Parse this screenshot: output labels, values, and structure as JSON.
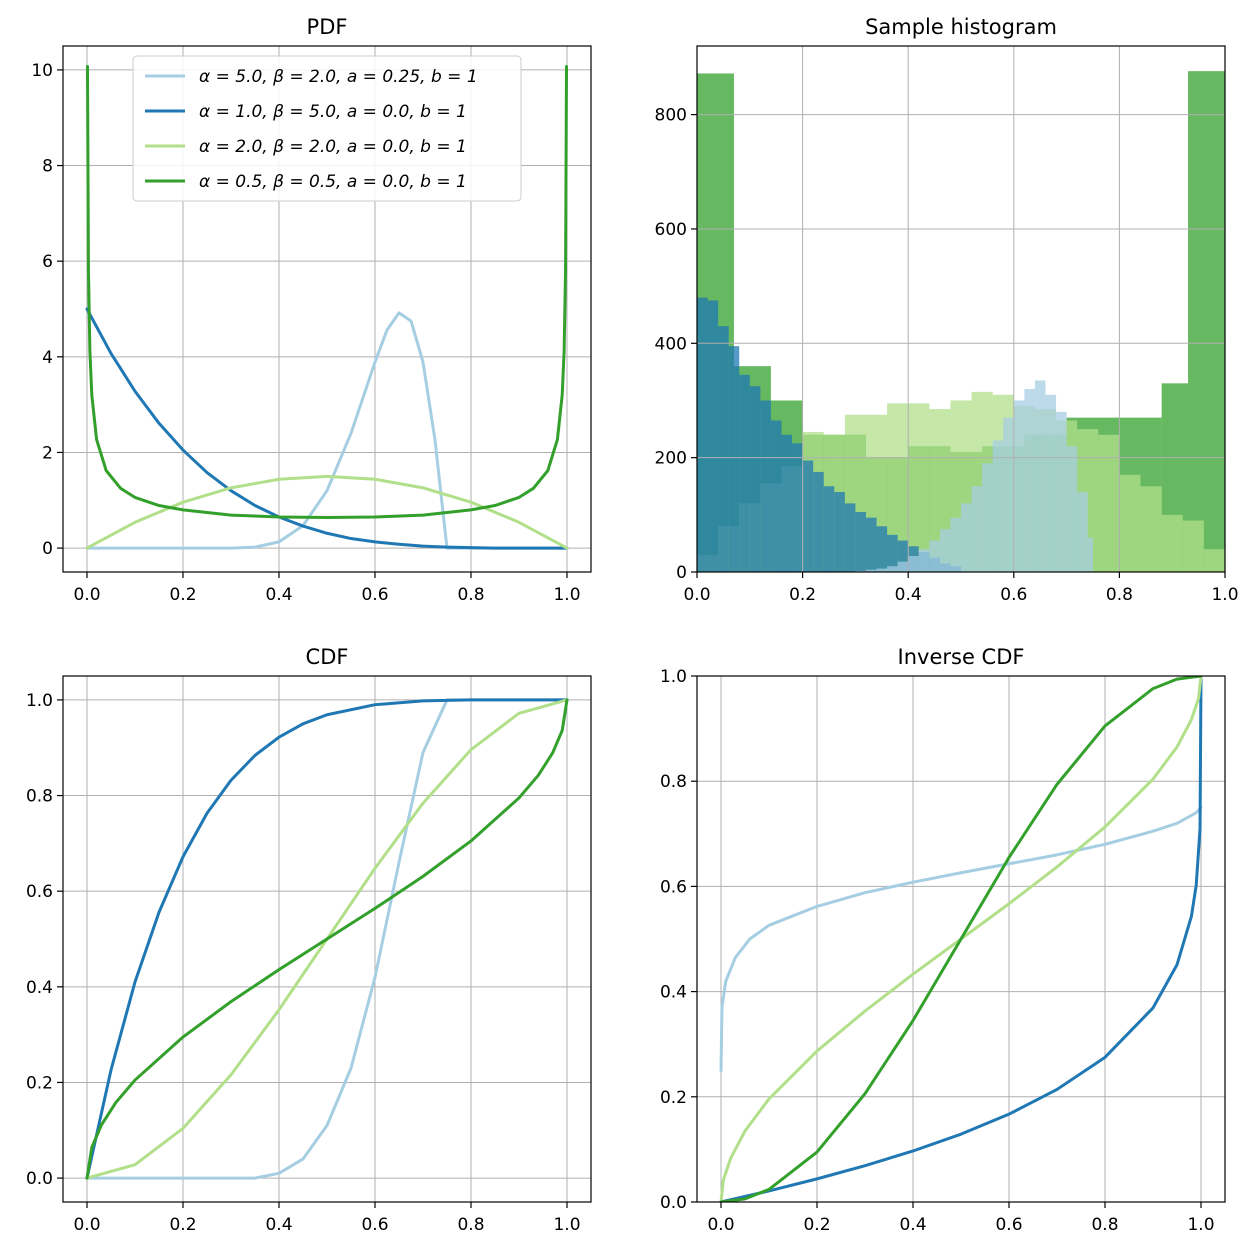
{
  "colors": {
    "light_blue": "#a6cee3",
    "dark_blue": "#1f78b4",
    "light_green": "#b2df8a",
    "dark_green": "#33a02c"
  },
  "legend": {
    "placement": "upper-center",
    "entries": [
      "α = 5.0, β = 2.0, a = 0.25, b = 1",
      "α = 1.0, β = 5.0, a = 0.0, b = 1",
      "α = 2.0, β = 2.0, a = 0.0, b = 1",
      "α = 0.5, β = 0.5, a = 0.0, b = 1"
    ]
  },
  "chart_data": [
    {
      "id": "pdf",
      "type": "line",
      "title": "PDF",
      "xlabel": "",
      "ylabel": "",
      "xlim": [
        -0.05,
        1.05
      ],
      "ylim": [
        -0.5,
        10.5
      ],
      "grid": true,
      "xticks": [
        0.0,
        0.2,
        0.4,
        0.6,
        0.8,
        1.0
      ],
      "xtick_labels": [
        "0.0",
        "0.2",
        "0.4",
        "0.6",
        "0.8",
        "1.0"
      ],
      "yticks": [
        0,
        2,
        4,
        6,
        8,
        10
      ],
      "ytick_labels": [
        "0",
        "2",
        "4",
        "6",
        "8",
        "10"
      ],
      "series": [
        {
          "name": "α = 5.0, β = 2.0, a = 0.25, b = 1",
          "color": "#a6cee3",
          "x": [
            0.0,
            0.25,
            0.3,
            0.35,
            0.4,
            0.45,
            0.5,
            0.55,
            0.6,
            0.625,
            0.65,
            0.675,
            0.7,
            0.725,
            0.75,
            1.0
          ],
          "y": [
            0,
            0,
            0.0,
            0.02,
            0.13,
            0.47,
            1.2,
            2.4,
            3.89,
            4.56,
            4.92,
            4.75,
            3.89,
            2.26,
            0,
            0
          ]
        },
        {
          "name": "α = 1.0, β = 5.0, a = 0.0, b = 1",
          "color": "#1f78b4",
          "x": [
            0.0,
            0.05,
            0.1,
            0.15,
            0.2,
            0.25,
            0.3,
            0.35,
            0.4,
            0.45,
            0.5,
            0.55,
            0.6,
            0.65,
            0.7,
            0.75,
            0.8,
            0.85,
            0.9,
            0.95,
            1.0
          ],
          "y": [
            5.0,
            4.07,
            3.28,
            2.61,
            2.05,
            1.58,
            1.2,
            0.89,
            0.65,
            0.46,
            0.31,
            0.2,
            0.13,
            0.08,
            0.04,
            0.02,
            0.01,
            0.0,
            0.0,
            0.0,
            0.0
          ]
        },
        {
          "name": "α = 2.0, β = 2.0, a = 0.0, b = 1",
          "color": "#b2df8a",
          "x": [
            0.0,
            0.1,
            0.2,
            0.3,
            0.4,
            0.5,
            0.6,
            0.7,
            0.8,
            0.9,
            1.0
          ],
          "y": [
            0.0,
            0.54,
            0.96,
            1.26,
            1.44,
            1.5,
            1.44,
            1.26,
            0.96,
            0.54,
            0.0
          ]
        },
        {
          "name": "α = 0.5, β = 0.5, a = 0.0, b = 1",
          "color": "#33a02c",
          "x": [
            0.001,
            0.003,
            0.006,
            0.01,
            0.02,
            0.04,
            0.07,
            0.1,
            0.15,
            0.2,
            0.3,
            0.4,
            0.5,
            0.6,
            0.7,
            0.8,
            0.85,
            0.9,
            0.93,
            0.96,
            0.98,
            0.99,
            0.994,
            0.997,
            0.999
          ],
          "y": [
            10.07,
            5.82,
            4.12,
            3.2,
            2.27,
            1.62,
            1.25,
            1.06,
            0.89,
            0.8,
            0.69,
            0.65,
            0.64,
            0.65,
            0.69,
            0.8,
            0.89,
            1.06,
            1.25,
            1.62,
            2.27,
            3.2,
            4.12,
            5.82,
            10.07
          ]
        }
      ]
    },
    {
      "id": "hist",
      "type": "bar",
      "title": "Sample histogram",
      "xlabel": "",
      "ylabel": "",
      "xlim": [
        0.0,
        1.0
      ],
      "ylim": [
        0,
        920
      ],
      "grid": true,
      "xticks": [
        0.0,
        0.2,
        0.4,
        0.6,
        0.8,
        1.0
      ],
      "xtick_labels": [
        "0.0",
        "0.2",
        "0.4",
        "0.6",
        "0.8",
        "1.0"
      ],
      "yticks": [
        0,
        200,
        400,
        600,
        800
      ],
      "ytick_labels": [
        "0",
        "200",
        "400",
        "600",
        "800"
      ],
      "series": [
        {
          "color": "#33a02c",
          "alpha": 0.75,
          "bins": [
            [
              0.0,
              0.07
            ],
            [
              0.07,
              0.14
            ],
            [
              0.14,
              0.2
            ],
            [
              0.2,
              0.26
            ],
            [
              0.26,
              0.32
            ],
            [
              0.32,
              0.4
            ],
            [
              0.4,
              0.48
            ],
            [
              0.48,
              0.54
            ],
            [
              0.54,
              0.62
            ],
            [
              0.62,
              0.7
            ],
            [
              0.7,
              0.8
            ],
            [
              0.8,
              0.88
            ],
            [
              0.88,
              0.93
            ],
            [
              0.93,
              1.0
            ]
          ],
          "values": [
            872,
            360,
            300,
            240,
            240,
            200,
            220,
            210,
            220,
            240,
            270,
            270,
            330,
            876
          ]
        },
        {
          "color": "#b2df8a",
          "alpha": 0.75,
          "bins": [
            [
              0.0,
              0.04
            ],
            [
              0.04,
              0.08
            ],
            [
              0.08,
              0.12
            ],
            [
              0.12,
              0.16
            ],
            [
              0.16,
              0.2
            ],
            [
              0.2,
              0.24
            ],
            [
              0.24,
              0.28
            ],
            [
              0.28,
              0.32
            ],
            [
              0.32,
              0.36
            ],
            [
              0.36,
              0.4
            ],
            [
              0.4,
              0.44
            ],
            [
              0.44,
              0.48
            ],
            [
              0.48,
              0.52
            ],
            [
              0.52,
              0.56
            ],
            [
              0.56,
              0.6
            ],
            [
              0.6,
              0.64
            ],
            [
              0.64,
              0.68
            ],
            [
              0.68,
              0.72
            ],
            [
              0.72,
              0.76
            ],
            [
              0.76,
              0.8
            ],
            [
              0.8,
              0.84
            ],
            [
              0.84,
              0.88
            ],
            [
              0.88,
              0.92
            ],
            [
              0.92,
              0.96
            ],
            [
              0.96,
              1.0
            ]
          ],
          "values": [
            30,
            80,
            120,
            155,
            185,
            245,
            240,
            275,
            275,
            295,
            295,
            285,
            300,
            315,
            310,
            290,
            285,
            265,
            250,
            240,
            170,
            150,
            100,
            90,
            40
          ]
        },
        {
          "color": "#1f78b4",
          "alpha": 0.75,
          "bins": [
            [
              0.0,
              0.02
            ],
            [
              0.02,
              0.04
            ],
            [
              0.04,
              0.06
            ],
            [
              0.06,
              0.08
            ],
            [
              0.08,
              0.1
            ],
            [
              0.1,
              0.12
            ],
            [
              0.12,
              0.14
            ],
            [
              0.14,
              0.16
            ],
            [
              0.16,
              0.18
            ],
            [
              0.18,
              0.2
            ],
            [
              0.2,
              0.22
            ],
            [
              0.22,
              0.24
            ],
            [
              0.24,
              0.26
            ],
            [
              0.26,
              0.28
            ],
            [
              0.28,
              0.3
            ],
            [
              0.3,
              0.32
            ],
            [
              0.32,
              0.34
            ],
            [
              0.34,
              0.36
            ],
            [
              0.36,
              0.38
            ],
            [
              0.38,
              0.4
            ],
            [
              0.4,
              0.42
            ],
            [
              0.42,
              0.44
            ],
            [
              0.44,
              0.46
            ],
            [
              0.46,
              0.48
            ],
            [
              0.48,
              0.5
            ]
          ],
          "values": [
            480,
            475,
            430,
            395,
            345,
            325,
            300,
            265,
            240,
            225,
            195,
            175,
            150,
            140,
            120,
            105,
            95,
            80,
            65,
            55,
            45,
            35,
            25,
            15,
            10
          ]
        },
        {
          "color": "#a6cee3",
          "alpha": 0.75,
          "bins": [
            [
              0.3,
              0.32
            ],
            [
              0.32,
              0.34
            ],
            [
              0.34,
              0.36
            ],
            [
              0.36,
              0.38
            ],
            [
              0.38,
              0.4
            ],
            [
              0.4,
              0.42
            ],
            [
              0.42,
              0.44
            ],
            [
              0.44,
              0.46
            ],
            [
              0.46,
              0.48
            ],
            [
              0.48,
              0.5
            ],
            [
              0.5,
              0.52
            ],
            [
              0.52,
              0.54
            ],
            [
              0.54,
              0.56
            ],
            [
              0.56,
              0.58
            ],
            [
              0.58,
              0.6
            ],
            [
              0.6,
              0.62
            ],
            [
              0.62,
              0.64
            ],
            [
              0.64,
              0.66
            ],
            [
              0.66,
              0.68
            ],
            [
              0.68,
              0.7
            ],
            [
              0.7,
              0.72
            ],
            [
              0.72,
              0.74
            ],
            [
              0.74,
              0.75
            ]
          ],
          "values": [
            2,
            4,
            6,
            10,
            18,
            28,
            40,
            55,
            75,
            95,
            120,
            150,
            190,
            230,
            270,
            300,
            320,
            335,
            310,
            280,
            220,
            140,
            60
          ]
        }
      ]
    },
    {
      "id": "cdf",
      "type": "line",
      "title": "CDF",
      "xlabel": "",
      "ylabel": "",
      "xlim": [
        -0.05,
        1.05
      ],
      "ylim": [
        -0.05,
        1.05
      ],
      "grid": true,
      "xticks": [
        0.0,
        0.2,
        0.4,
        0.6,
        0.8,
        1.0
      ],
      "xtick_labels": [
        "0.0",
        "0.2",
        "0.4",
        "0.6",
        "0.8",
        "1.0"
      ],
      "yticks": [
        0.0,
        0.2,
        0.4,
        0.6,
        0.8,
        1.0
      ],
      "ytick_labels": [
        "0.0",
        "0.2",
        "0.4",
        "0.6",
        "0.8",
        "1.0"
      ],
      "series": [
        {
          "name": "α = 5.0, β = 2.0, a = 0.25, b = 1",
          "color": "#a6cee3",
          "x": [
            0.0,
            0.25,
            0.3,
            0.35,
            0.4,
            0.45,
            0.5,
            0.55,
            0.6,
            0.65,
            0.7,
            0.75,
            1.0
          ],
          "y": [
            0,
            0,
            0.0,
            0.0,
            0.01,
            0.04,
            0.11,
            0.23,
            0.42,
            0.66,
            0.89,
            1.0,
            1.0
          ]
        },
        {
          "name": "α = 1.0, β = 5.0, a = 0.0, b = 1",
          "color": "#1f78b4",
          "x": [
            0.0,
            0.05,
            0.1,
            0.15,
            0.2,
            0.25,
            0.3,
            0.35,
            0.4,
            0.45,
            0.5,
            0.6,
            0.7,
            0.8,
            0.9,
            1.0
          ],
          "y": [
            0.0,
            0.226,
            0.41,
            0.556,
            0.672,
            0.763,
            0.832,
            0.884,
            0.922,
            0.95,
            0.969,
            0.99,
            0.998,
            1.0,
            1.0,
            1.0
          ]
        },
        {
          "name": "α = 2.0, β = 2.0, a = 0.0, b = 1",
          "color": "#b2df8a",
          "x": [
            0.0,
            0.1,
            0.2,
            0.3,
            0.4,
            0.5,
            0.6,
            0.7,
            0.8,
            0.9,
            1.0
          ],
          "y": [
            0.0,
            0.028,
            0.104,
            0.216,
            0.352,
            0.5,
            0.648,
            0.784,
            0.896,
            0.972,
            1.0
          ]
        },
        {
          "name": "α = 0.5, β = 0.5, a = 0.0, b = 1",
          "color": "#33a02c",
          "x": [
            0.0,
            0.01,
            0.03,
            0.06,
            0.1,
            0.2,
            0.3,
            0.4,
            0.5,
            0.6,
            0.7,
            0.8,
            0.9,
            0.94,
            0.97,
            0.99,
            1.0
          ],
          "y": [
            0.0,
            0.064,
            0.111,
            0.158,
            0.205,
            0.295,
            0.369,
            0.436,
            0.5,
            0.564,
            0.631,
            0.705,
            0.795,
            0.842,
            0.889,
            0.936,
            1.0
          ]
        }
      ]
    },
    {
      "id": "icdf",
      "type": "line",
      "title": "Inverse CDF",
      "xlabel": "",
      "ylabel": "",
      "xlim": [
        -0.05,
        1.05
      ],
      "ylim": [
        0.0,
        1.0
      ],
      "grid": true,
      "xticks": [
        0.0,
        0.2,
        0.4,
        0.6,
        0.8,
        1.0
      ],
      "xtick_labels": [
        "0.0",
        "0.2",
        "0.4",
        "0.6",
        "0.8",
        "1.0"
      ],
      "yticks": [
        0.0,
        0.2,
        0.4,
        0.6,
        0.8,
        1.0
      ],
      "ytick_labels": [
        "0.0",
        "0.2",
        "0.4",
        "0.6",
        "0.8",
        "1.0"
      ],
      "series": [
        {
          "name": "α = 5.0, β = 2.0, a = 0.25, b = 1",
          "color": "#a6cee3",
          "x": [
            0.0,
            0.002,
            0.01,
            0.03,
            0.06,
            0.1,
            0.2,
            0.3,
            0.4,
            0.5,
            0.6,
            0.7,
            0.8,
            0.9,
            0.95,
            0.99,
            1.0
          ],
          "y": [
            0.25,
            0.37,
            0.42,
            0.465,
            0.5,
            0.526,
            0.562,
            0.588,
            0.608,
            0.626,
            0.643,
            0.66,
            0.68,
            0.705,
            0.72,
            0.74,
            0.75
          ]
        },
        {
          "name": "α = 1.0, β = 5.0, a = 0.0, b = 1",
          "color": "#1f78b4",
          "x": [
            0.0,
            0.1,
            0.2,
            0.3,
            0.4,
            0.5,
            0.6,
            0.7,
            0.8,
            0.9,
            0.95,
            0.98,
            0.99,
            0.998,
            1.0
          ],
          "y": [
            0.0,
            0.021,
            0.044,
            0.069,
            0.097,
            0.129,
            0.167,
            0.214,
            0.275,
            0.369,
            0.451,
            0.543,
            0.602,
            0.71,
            1.0
          ]
        },
        {
          "name": "α = 2.0, β = 2.0, a = 0.0, b = 1",
          "color": "#b2df8a",
          "x": [
            0.0,
            0.005,
            0.02,
            0.05,
            0.1,
            0.2,
            0.3,
            0.4,
            0.5,
            0.6,
            0.7,
            0.8,
            0.9,
            0.95,
            0.98,
            0.995,
            1.0
          ],
          "y": [
            0.0,
            0.042,
            0.083,
            0.135,
            0.196,
            0.287,
            0.363,
            0.433,
            0.5,
            0.567,
            0.637,
            0.713,
            0.804,
            0.865,
            0.917,
            0.958,
            1.0
          ]
        },
        {
          "name": "α = 0.5, β = 0.5, a = 0.0, b = 1",
          "color": "#33a02c",
          "x": [
            0.0,
            0.05,
            0.1,
            0.2,
            0.3,
            0.4,
            0.5,
            0.6,
            0.7,
            0.8,
            0.9,
            0.95,
            1.0
          ],
          "y": [
            0.0,
            0.006,
            0.024,
            0.095,
            0.206,
            0.345,
            0.5,
            0.655,
            0.794,
            0.905,
            0.976,
            0.994,
            1.0
          ]
        }
      ]
    }
  ]
}
